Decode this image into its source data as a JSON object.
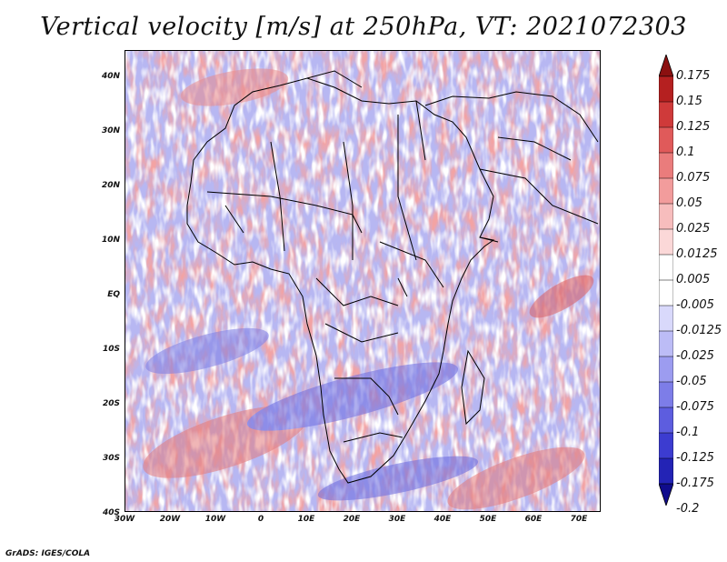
{
  "title": "Vertical velocity [m/s] at 250hPa, VT: 2021072303",
  "credit": "GrADS: IGES/COLA",
  "latitude_labels": [
    "40N",
    "30N",
    "20N",
    "10N",
    "EQ",
    "10S",
    "20S",
    "30S",
    "40S"
  ],
  "longitude_labels": [
    "30W",
    "20W",
    "10W",
    "0",
    "10E",
    "20E",
    "30E",
    "40E",
    "50E",
    "60E",
    "70E"
  ],
  "colorbar": {
    "levels": [
      "0.175",
      "0.15",
      "0.125",
      "0.1",
      "0.075",
      "0.05",
      "0.025",
      "0.0125",
      "0.005",
      "-0.005",
      "-0.0125",
      "-0.025",
      "-0.05",
      "-0.075",
      "-0.1",
      "-0.125",
      "-0.175",
      "-0.2"
    ],
    "colors": [
      "#8b1010",
      "#b52020",
      "#cf3a3a",
      "#e05a5a",
      "#ea7c7c",
      "#f29c9c",
      "#f7bdbd",
      "#fbd8d8",
      "#ffffff",
      "#ffffff",
      "#d9d9fb",
      "#bcbcf6",
      "#9c9cf0",
      "#7d7de8",
      "#5d5ddf",
      "#3c3cd0",
      "#2323b5",
      "#100c8c"
    ]
  }
}
